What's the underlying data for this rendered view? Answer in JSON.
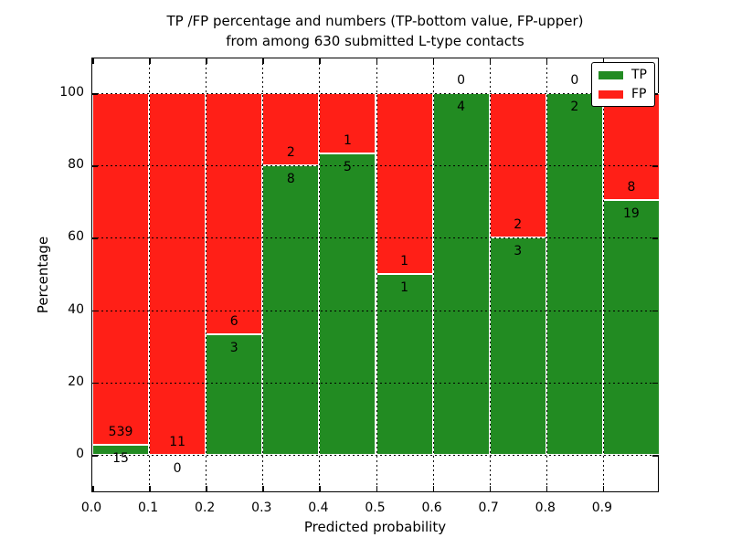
{
  "title": {
    "line1": "TP /FP percentage and numbers (TP-bottom value, FP-upper)",
    "line2": "from among 630 submitted L-type contacts"
  },
  "axes": {
    "xlabel": "Predicted probability",
    "ylabel": "Percentage",
    "x_tick_labels": [
      "0.0",
      "0.1",
      "0.2",
      "0.3",
      "0.4",
      "0.5",
      "0.6",
      "0.7",
      "0.8",
      "0.9"
    ],
    "y_tick_labels": [
      "0",
      "20",
      "40",
      "60",
      "80",
      "100"
    ],
    "y_tick_values": [
      0,
      20,
      40,
      60,
      80,
      100
    ],
    "xlim": [
      0.0,
      1.0
    ],
    "ylim": [
      -10.6,
      109.6
    ],
    "grid": "dotted"
  },
  "legend": {
    "position": "upper right",
    "items": [
      {
        "label": "TP",
        "color": "#228B22"
      },
      {
        "label": "FP",
        "color": "#FF1F17"
      }
    ]
  },
  "chart_data": {
    "type": "bar",
    "stacked": true,
    "orientation": "vertical",
    "bin_edges": [
      0.0,
      0.1,
      0.2,
      0.3,
      0.4,
      0.5,
      0.6,
      0.7,
      0.8,
      0.9,
      1.0
    ],
    "series": [
      {
        "name": "TP",
        "color": "#228B22",
        "counts": [
          15,
          0,
          3,
          8,
          5,
          1,
          4,
          3,
          2,
          19
        ]
      },
      {
        "name": "FP",
        "color": "#FF1F17",
        "counts": [
          539,
          11,
          6,
          2,
          1,
          1,
          0,
          2,
          0,
          8
        ]
      }
    ],
    "tp_percent": [
      2.71,
      0.0,
      33.33,
      80.0,
      83.33,
      50.0,
      100.0,
      60.0,
      100.0,
      70.37
    ],
    "total_contacts": 630,
    "bar_edge_color": "#ffffff",
    "value_label_rule": "TP count below stack boundary, FP count above stack boundary"
  }
}
